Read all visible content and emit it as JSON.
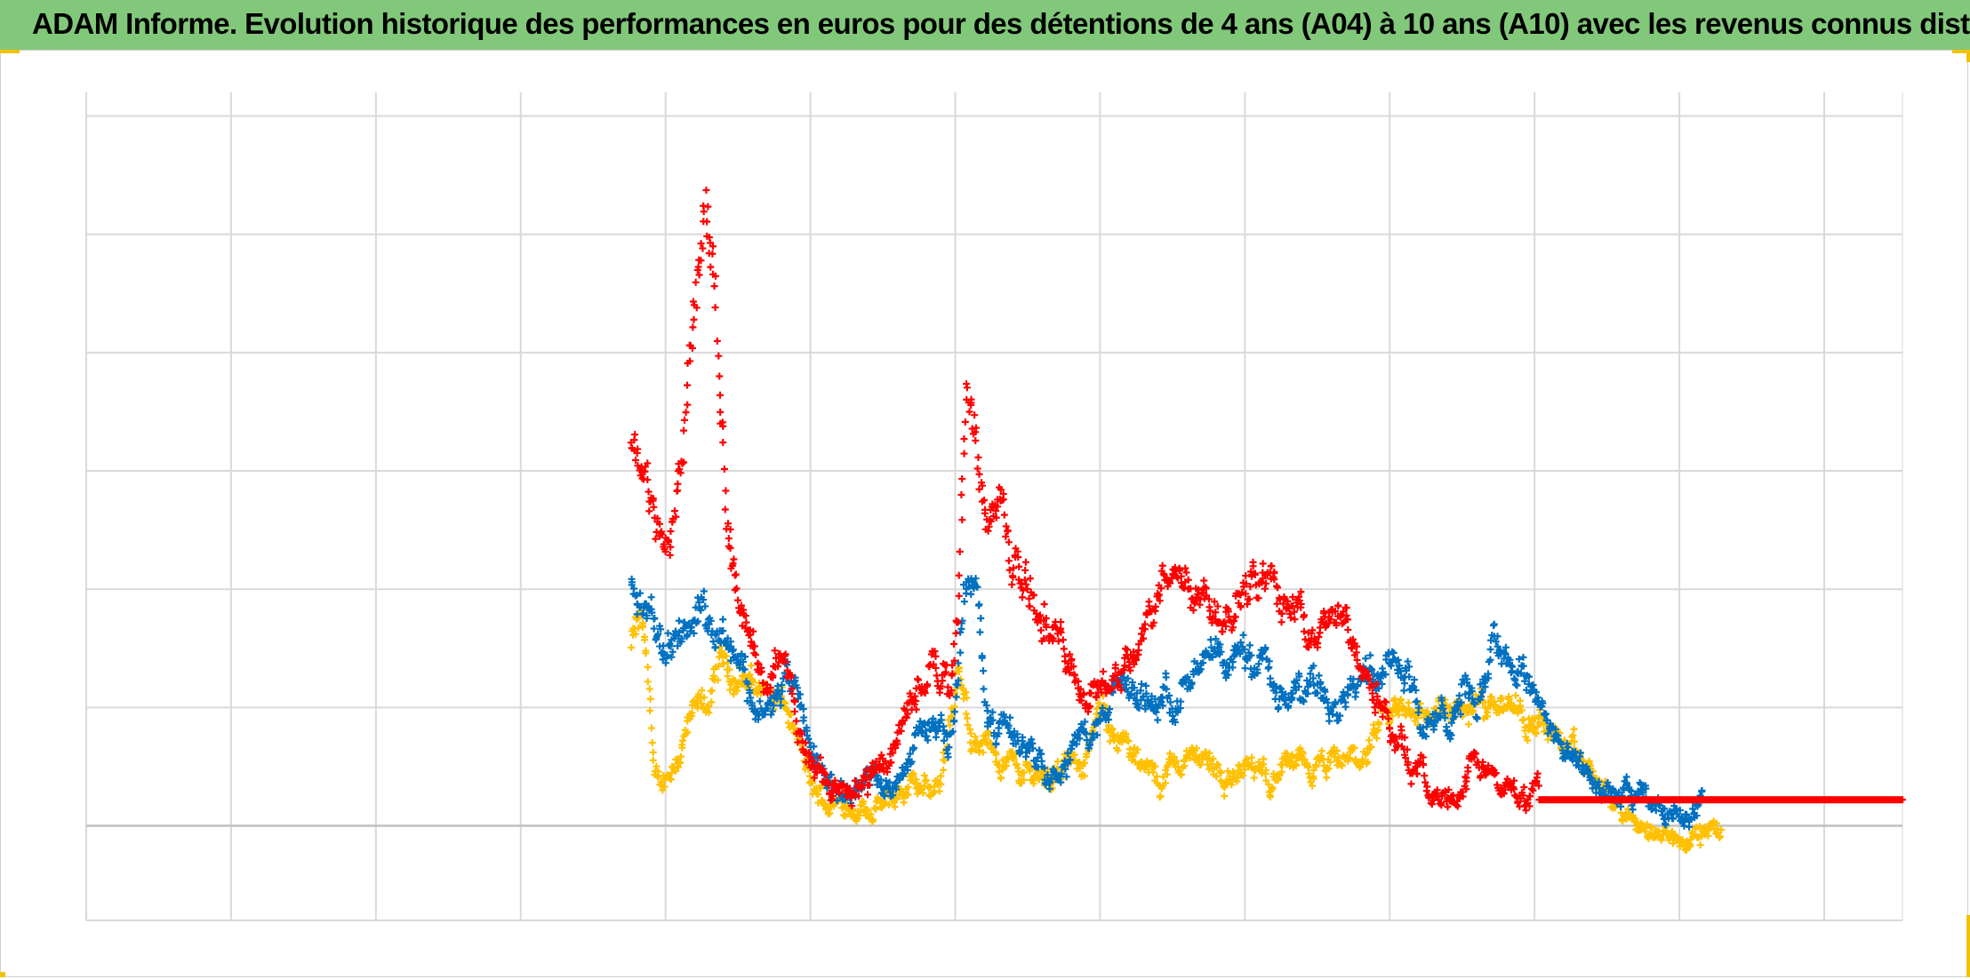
{
  "chart_data": {
    "type": "scatter",
    "title": "ADAM Informe. Evolution historique des performances en euros pour des détentions de 4 ans (A04) à 10 ans (A10) avec les revenus connus distribués",
    "xlabel": "",
    "ylabel": "",
    "x_index_range": [
      0,
      100
    ],
    "ylim": [
      -0.8,
      6.2
    ],
    "grid": true,
    "marker": "+",
    "legend": "none",
    "series": [
      {
        "color": "#ffc000",
        "points": [
          [
            30,
            1.5
          ],
          [
            30.5,
            1.7
          ],
          [
            31,
            1.2
          ],
          [
            31.3,
            0.3
          ],
          [
            31.7,
            0.35
          ],
          [
            32.5,
            0.6
          ],
          [
            33.5,
            0.9
          ],
          [
            34.5,
            1.1
          ],
          [
            35,
            1.4
          ],
          [
            36,
            1.25
          ],
          [
            37,
            1.2
          ],
          [
            38,
            1.05
          ],
          [
            38.7,
            0.9
          ],
          [
            39.5,
            0.55
          ],
          [
            40,
            0.25
          ],
          [
            41,
            0.2
          ],
          [
            42,
            0.2
          ],
          [
            43,
            0.18
          ],
          [
            44,
            0.15
          ],
          [
            45,
            0.3
          ],
          [
            46,
            0.3
          ],
          [
            47,
            0.35
          ],
          [
            47.5,
            0.9
          ],
          [
            48,
            1.3
          ],
          [
            48.5,
            0.9
          ],
          [
            49,
            0.75
          ],
          [
            50,
            0.65
          ],
          [
            51,
            0.5
          ],
          [
            52,
            0.45
          ],
          [
            53,
            0.45
          ],
          [
            54,
            0.45
          ],
          [
            55,
            0.6
          ],
          [
            56,
            0.9
          ],
          [
            56.5,
            0.9
          ],
          [
            57,
            0.75
          ],
          [
            58,
            0.45
          ],
          [
            59,
            0.4
          ],
          [
            60,
            0.5
          ],
          [
            61,
            0.6
          ],
          [
            62,
            0.55
          ],
          [
            63,
            0.4
          ],
          [
            64,
            0.45
          ],
          [
            65,
            0.4
          ],
          [
            66,
            0.5
          ],
          [
            67,
            0.45
          ],
          [
            68,
            0.45
          ],
          [
            69,
            0.5
          ],
          [
            70,
            0.55
          ],
          [
            71,
            0.7
          ],
          [
            72,
            0.95
          ],
          [
            73,
            1.0
          ],
          [
            74,
            0.95
          ],
          [
            75,
            0.9
          ],
          [
            76,
            1.0
          ],
          [
            77,
            1.05
          ],
          [
            78,
            1.15
          ],
          [
            79,
            1.0
          ],
          [
            80,
            0.85
          ],
          [
            81,
            0.75
          ],
          [
            82,
            0.55
          ],
          [
            83,
            0.4
          ],
          [
            84,
            0.2
          ],
          [
            85,
            0.05
          ],
          [
            86,
            -0.05
          ],
          [
            87,
            -0.08
          ],
          [
            88,
            -0.1
          ],
          [
            89,
            -0.08
          ],
          [
            90,
            -0.05
          ]
        ]
      },
      {
        "color": "#0070c0",
        "points": [
          [
            30,
            2.0
          ],
          [
            30.5,
            1.9
          ],
          [
            31,
            1.7
          ],
          [
            31.5,
            1.6
          ],
          [
            32,
            1.5
          ],
          [
            32.5,
            1.6
          ],
          [
            33,
            1.7
          ],
          [
            33.5,
            1.8
          ],
          [
            34,
            1.85
          ],
          [
            34.5,
            1.75
          ],
          [
            35,
            1.65
          ],
          [
            35.5,
            1.55
          ],
          [
            36,
            1.45
          ],
          [
            36.5,
            1.15
          ],
          [
            37,
            1.0
          ],
          [
            37.5,
            0.95
          ],
          [
            38,
            1.05
          ],
          [
            38.5,
            1.25
          ],
          [
            39,
            1.1
          ],
          [
            39.5,
            0.8
          ],
          [
            40,
            0.6
          ],
          [
            40.5,
            0.5
          ],
          [
            41,
            0.4
          ],
          [
            42,
            0.35
          ],
          [
            43,
            0.4
          ],
          [
            44,
            0.3
          ],
          [
            45,
            0.5
          ],
          [
            46,
            0.85
          ],
          [
            47,
            0.9
          ],
          [
            47.5,
            0.6
          ],
          [
            48,
            1.3
          ],
          [
            48.5,
            2.1
          ],
          [
            49,
            2.0
          ],
          [
            49.5,
            1.2
          ],
          [
            50,
            0.85
          ],
          [
            51,
            0.75
          ],
          [
            52,
            0.7
          ],
          [
            53,
            0.55
          ],
          [
            54,
            0.55
          ],
          [
            55,
            0.75
          ],
          [
            56,
            0.9
          ],
          [
            56.5,
            1.1
          ],
          [
            57,
            1.2
          ],
          [
            58,
            1.05
          ],
          [
            59,
            1.1
          ],
          [
            60,
            1.15
          ],
          [
            61,
            1.25
          ],
          [
            62,
            1.3
          ],
          [
            63,
            1.35
          ],
          [
            64,
            1.5
          ],
          [
            65,
            1.35
          ],
          [
            66,
            1.05
          ],
          [
            67,
            1.15
          ],
          [
            68,
            1.2
          ],
          [
            69,
            1.15
          ],
          [
            70,
            1.25
          ],
          [
            71,
            1.4
          ],
          [
            72,
            1.5
          ],
          [
            73,
            1.25
          ],
          [
            73.5,
            0.9
          ],
          [
            74,
            0.8
          ],
          [
            75,
            0.95
          ],
          [
            76,
            1.2
          ],
          [
            76.5,
            1.0
          ],
          [
            77,
            1.3
          ],
          [
            77.5,
            1.6
          ],
          [
            78,
            1.55
          ],
          [
            79,
            1.3
          ],
          [
            80,
            1.1
          ],
          [
            81,
            0.75
          ],
          [
            82,
            0.5
          ],
          [
            83,
            0.4
          ],
          [
            84,
            0.3
          ],
          [
            85,
            0.2
          ],
          [
            86,
            0.2
          ],
          [
            87,
            0.15
          ],
          [
            88,
            0.12
          ],
          [
            89,
            0.15
          ]
        ]
      },
      {
        "color": "#ff0000",
        "points": [
          [
            30,
            3.2
          ],
          [
            30.5,
            3.05
          ],
          [
            31,
            2.7
          ],
          [
            31.5,
            2.4
          ],
          [
            32,
            2.3
          ],
          [
            32.5,
            2.8
          ],
          [
            33,
            3.35
          ],
          [
            33.5,
            4.5
          ],
          [
            34,
            5.3
          ],
          [
            34.5,
            4.6
          ],
          [
            35,
            3.4
          ],
          [
            35.5,
            2.4
          ],
          [
            36,
            1.9
          ],
          [
            36.5,
            1.6
          ],
          [
            37,
            1.3
          ],
          [
            37.5,
            1.25
          ],
          [
            38,
            1.4
          ],
          [
            38.5,
            1.45
          ],
          [
            39,
            1.0
          ],
          [
            39.5,
            0.7
          ],
          [
            40,
            0.5
          ],
          [
            41,
            0.4
          ],
          [
            42,
            0.35
          ],
          [
            43,
            0.4
          ],
          [
            44,
            0.55
          ],
          [
            45,
            0.9
          ],
          [
            46,
            1.2
          ],
          [
            46.5,
            1.35
          ],
          [
            47,
            1.25
          ],
          [
            47.5,
            1.3
          ],
          [
            48,
            1.8
          ],
          [
            48.5,
            3.7
          ],
          [
            49,
            3.3
          ],
          [
            49.5,
            2.65
          ],
          [
            50,
            2.6
          ],
          [
            50.5,
            2.75
          ],
          [
            51,
            2.2
          ],
          [
            52,
            1.95
          ],
          [
            53,
            1.8
          ],
          [
            54,
            1.35
          ],
          [
            55,
            1.15
          ],
          [
            56,
            1.1
          ],
          [
            57,
            1.3
          ],
          [
            58,
            1.65
          ],
          [
            59,
            1.95
          ],
          [
            60,
            2.2
          ],
          [
            61,
            2.0
          ],
          [
            62,
            1.85
          ],
          [
            63,
            1.9
          ],
          [
            64,
            2.2
          ],
          [
            65,
            2.05
          ],
          [
            66,
            1.85
          ],
          [
            67,
            1.8
          ],
          [
            68,
            1.65
          ],
          [
            69,
            1.75
          ],
          [
            70,
            1.5
          ],
          [
            71,
            1.25
          ],
          [
            72,
            0.8
          ],
          [
            73,
            0.5
          ],
          [
            74,
            0.3
          ],
          [
            75,
            0.25
          ],
          [
            76,
            0.4
          ],
          [
            77,
            0.5
          ],
          [
            78,
            0.3
          ],
          [
            79,
            0.25
          ],
          [
            80,
            0.22
          ]
        ],
        "flat_segment": {
          "x_start": 80,
          "x_end": 100,
          "y": 0.22
        }
      }
    ]
  }
}
